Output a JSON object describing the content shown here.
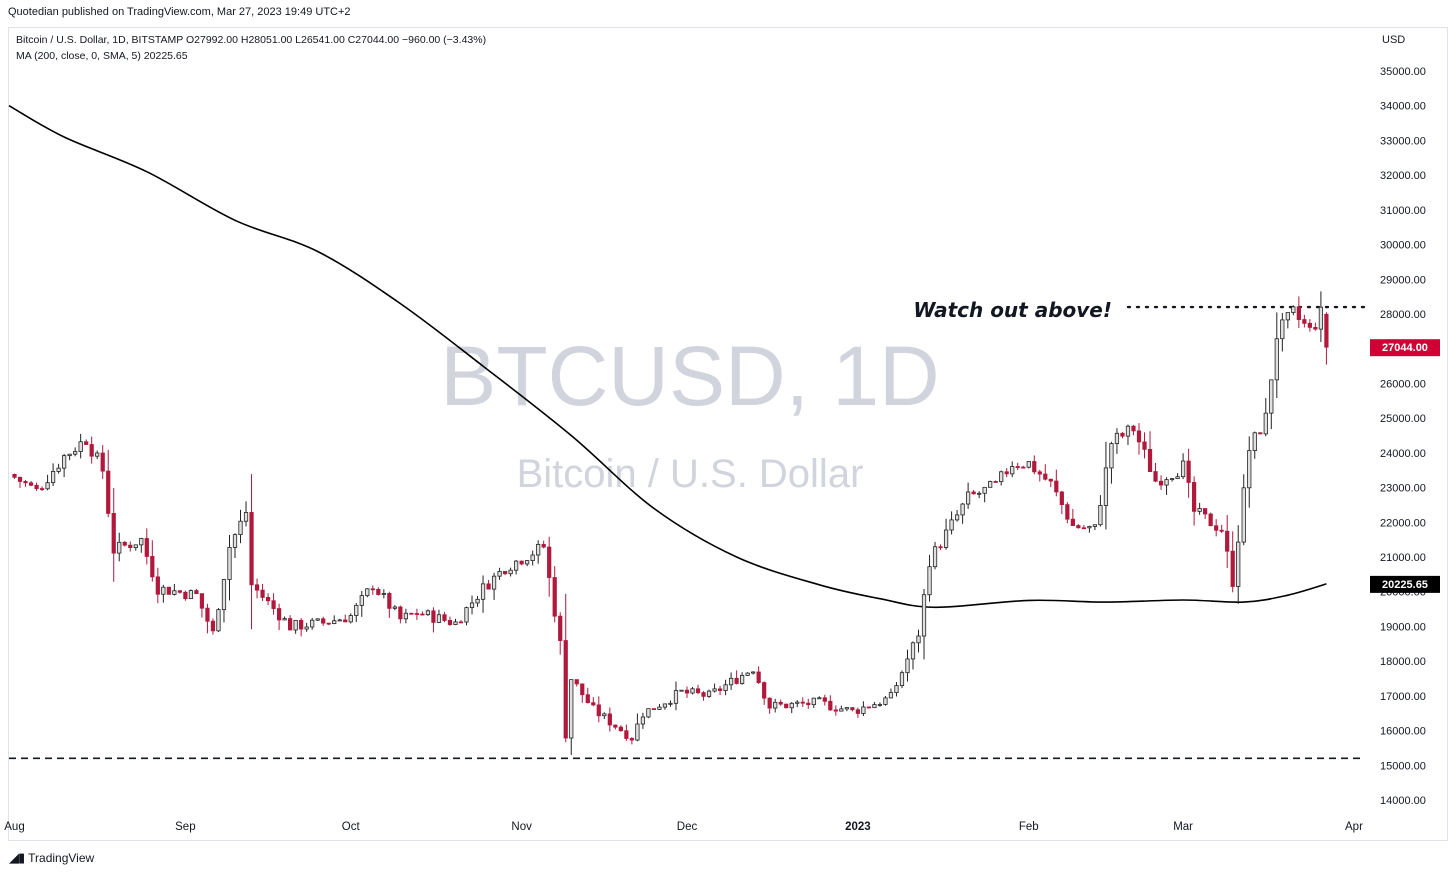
{
  "header": {
    "published_line": "Quotedian published on TradingView.com, Mar 27, 2023 19:49 UTC+2",
    "symbol_line": "Bitcoin / U.S. Dollar, 1D, BITSTAMP  O27992.00  H28051.00  L26541.00  C27044.00  −960.00 (−3.43%)",
    "indicator_line": "MA (200, close, 0, SMA, 5)  20225.65",
    "currency": "USD"
  },
  "watermark": {
    "symbol": "BTCUSD, 1D",
    "name": "Bitcoin / U.S. Dollar"
  },
  "footer": {
    "brand": "TradingView",
    "brand_icon": "tradingview-logo-icon"
  },
  "colors": {
    "up_fill": "#e0e0e0",
    "down_fill": "#b0183c",
    "outline": "#222222",
    "ma": "#000000",
    "price_tag": "#d10034",
    "ma_tag": "#000000"
  },
  "chart_data": {
    "type": "candlestick",
    "ylim": [
      13600,
      35600
    ],
    "yticks": [
      14000,
      15000,
      16000,
      17000,
      18000,
      19000,
      20000,
      21000,
      22000,
      23000,
      24000,
      25000,
      26000,
      27000,
      28000,
      29000,
      30000,
      31000,
      32000,
      33000,
      34000,
      35000
    ],
    "x_start": "2022-07-31",
    "x_end": "2023-04-03",
    "xticks": [
      {
        "label": "Aug",
        "date": "2022-08-01",
        "bold": false
      },
      {
        "label": "Sep",
        "date": "2022-09-01",
        "bold": false
      },
      {
        "label": "Oct",
        "date": "2022-10-01",
        "bold": false
      },
      {
        "label": "Nov",
        "date": "2022-11-01",
        "bold": false
      },
      {
        "label": "Dec",
        "date": "2022-12-01",
        "bold": false
      },
      {
        "label": "2023",
        "date": "2023-01-01",
        "bold": true
      },
      {
        "label": "Feb",
        "date": "2023-02-01",
        "bold": false
      },
      {
        "label": "Mar",
        "date": "2023-03-01",
        "bold": false
      },
      {
        "label": "Apr",
        "date": "2023-04-01",
        "bold": false
      }
    ],
    "anchors": [
      {
        "date": "2022-08-01",
        "price": 23300
      },
      {
        "date": "2022-08-05",
        "price": 22900
      },
      {
        "date": "2022-08-10",
        "price": 23900
      },
      {
        "date": "2022-08-14",
        "price": 24400
      },
      {
        "date": "2022-08-17",
        "price": 23500
      },
      {
        "date": "2022-08-19",
        "price": 21200
      },
      {
        "date": "2022-08-24",
        "price": 21500
      },
      {
        "date": "2022-08-27",
        "price": 20100
      },
      {
        "date": "2022-09-03",
        "price": 19900
      },
      {
        "date": "2022-09-06",
        "price": 18800
      },
      {
        "date": "2022-09-09",
        "price": 21300
      },
      {
        "date": "2022-09-12",
        "price": 22300
      },
      {
        "date": "2022-09-13",
        "price": 20200
      },
      {
        "date": "2022-09-20",
        "price": 19000
      },
      {
        "date": "2022-09-26",
        "price": 19100
      },
      {
        "date": "2022-10-01",
        "price": 19300
      },
      {
        "date": "2022-10-05",
        "price": 20200
      },
      {
        "date": "2022-10-10",
        "price": 19200
      },
      {
        "date": "2022-10-13",
        "price": 19400
      },
      {
        "date": "2022-10-20",
        "price": 19100
      },
      {
        "date": "2022-10-25",
        "price": 20100
      },
      {
        "date": "2022-10-29",
        "price": 20700
      },
      {
        "date": "2022-11-05",
        "price": 21300
      },
      {
        "date": "2022-11-08",
        "price": 18500
      },
      {
        "date": "2022-11-09",
        "price": 15900
      },
      {
        "date": "2022-11-10",
        "price": 17500
      },
      {
        "date": "2022-11-14",
        "price": 16600
      },
      {
        "date": "2022-11-21",
        "price": 15800
      },
      {
        "date": "2022-11-23",
        "price": 16500
      },
      {
        "date": "2022-11-30",
        "price": 17100
      },
      {
        "date": "2022-12-05",
        "price": 17000
      },
      {
        "date": "2022-12-13",
        "price": 17800
      },
      {
        "date": "2022-12-16",
        "price": 16700
      },
      {
        "date": "2022-12-25",
        "price": 16800
      },
      {
        "date": "2022-12-31",
        "price": 16550
      },
      {
        "date": "2023-01-07",
        "price": 16950
      },
      {
        "date": "2023-01-12",
        "price": 18800
      },
      {
        "date": "2023-01-14",
        "price": 20900
      },
      {
        "date": "2023-01-21",
        "price": 22700
      },
      {
        "date": "2023-01-26",
        "price": 23050
      },
      {
        "date": "2023-01-29",
        "price": 23700
      },
      {
        "date": "2023-02-01",
        "price": 23700
      },
      {
        "date": "2023-02-05",
        "price": 23100
      },
      {
        "date": "2023-02-09",
        "price": 21900
      },
      {
        "date": "2023-02-13",
        "price": 21800
      },
      {
        "date": "2023-02-16",
        "price": 24300
      },
      {
        "date": "2023-02-20",
        "price": 24700
      },
      {
        "date": "2023-02-24",
        "price": 23200
      },
      {
        "date": "2023-03-01",
        "price": 23600
      },
      {
        "date": "2023-03-03",
        "price": 22300
      },
      {
        "date": "2023-03-08",
        "price": 21800
      },
      {
        "date": "2023-03-10",
        "price": 20300
      },
      {
        "date": "2023-03-13",
        "price": 24100
      },
      {
        "date": "2023-03-16",
        "price": 25000
      },
      {
        "date": "2023-03-18",
        "price": 27400
      },
      {
        "date": "2023-03-21",
        "price": 28000
      },
      {
        "date": "2023-03-24",
        "price": 27500
      },
      {
        "date": "2023-03-26",
        "price": 27992
      },
      {
        "date": "2023-03-27",
        "price": 27044
      }
    ],
    "last_candle": {
      "date": "2023-03-27",
      "open": 27992.0,
      "high": 28051.0,
      "low": 26541.0,
      "close": 27044.0,
      "change": -960.0,
      "change_pct": -3.43
    },
    "ma_200": [
      {
        "date": "2022-07-31",
        "value": 34000
      },
      {
        "date": "2022-08-10",
        "value": 33100
      },
      {
        "date": "2022-08-25",
        "value": 32100
      },
      {
        "date": "2022-09-10",
        "value": 30700
      },
      {
        "date": "2022-09-25",
        "value": 29800
      },
      {
        "date": "2022-10-10",
        "value": 28300
      },
      {
        "date": "2022-10-25",
        "value": 26500
      },
      {
        "date": "2022-11-10",
        "value": 24500
      },
      {
        "date": "2022-11-25",
        "value": 22400
      },
      {
        "date": "2022-12-10",
        "value": 21000
      },
      {
        "date": "2022-12-25",
        "value": 20200
      },
      {
        "date": "2023-01-05",
        "value": 19800
      },
      {
        "date": "2023-01-15",
        "value": 19550
      },
      {
        "date": "2023-02-01",
        "value": 19750
      },
      {
        "date": "2023-02-15",
        "value": 19700
      },
      {
        "date": "2023-03-01",
        "value": 19760
      },
      {
        "date": "2023-03-12",
        "value": 19700
      },
      {
        "date": "2023-03-20",
        "value": 19900
      },
      {
        "date": "2023-03-27",
        "value": 20225.65
      }
    ],
    "price_tag": "27044.00",
    "ma_tag": "20225.65",
    "support_level": 15200,
    "resistance_level": 28200,
    "resistance_start": "2023-02-19",
    "annotation": "Watch out above!"
  }
}
